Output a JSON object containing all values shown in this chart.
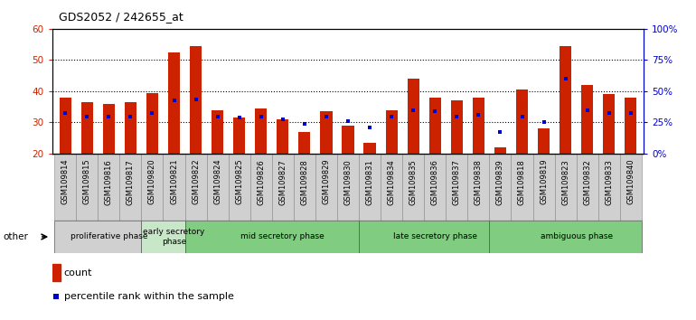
{
  "title": "GDS2052 / 242655_at",
  "samples": [
    "GSM109814",
    "GSM109815",
    "GSM109816",
    "GSM109817",
    "GSM109820",
    "GSM109821",
    "GSM109822",
    "GSM109824",
    "GSM109825",
    "GSM109826",
    "GSM109827",
    "GSM109828",
    "GSM109829",
    "GSM109830",
    "GSM109831",
    "GSM109834",
    "GSM109835",
    "GSM109836",
    "GSM109837",
    "GSM109838",
    "GSM109839",
    "GSM109818",
    "GSM109819",
    "GSM109823",
    "GSM109832",
    "GSM109833",
    "GSM109840"
  ],
  "count_values": [
    38.0,
    36.5,
    36.0,
    36.5,
    39.5,
    52.5,
    54.5,
    34.0,
    31.5,
    34.5,
    31.0,
    27.0,
    33.5,
    29.0,
    23.5,
    34.0,
    44.0,
    38.0,
    37.0,
    38.0,
    22.0,
    40.5,
    28.0,
    54.5,
    42.0,
    39.0,
    38.0
  ],
  "percentile_values": [
    33.0,
    32.0,
    32.0,
    32.0,
    33.0,
    37.0,
    37.5,
    32.0,
    31.5,
    32.0,
    31.0,
    29.5,
    32.0,
    30.5,
    28.5,
    32.0,
    34.0,
    33.5,
    32.0,
    32.5,
    27.0,
    32.0,
    30.0,
    44.0,
    34.0,
    33.0,
    33.0
  ],
  "phases": [
    {
      "label": "proliferative phase",
      "start": 0,
      "end": 4,
      "color": "#d0d0d0"
    },
    {
      "label": "early secretory\nphase",
      "start": 4,
      "end": 6,
      "color": "#c8e6c8"
    },
    {
      "label": "mid secretory phase",
      "start": 6,
      "end": 14,
      "color": "#80cc80"
    },
    {
      "label": "late secretory phase",
      "start": 14,
      "end": 20,
      "color": "#80cc80"
    },
    {
      "label": "ambiguous phase",
      "start": 20,
      "end": 27,
      "color": "#80cc80"
    }
  ],
  "bar_color": "#cc2200",
  "dot_color": "#0000cc",
  "ylim_left": [
    20,
    60
  ],
  "ylim_right": [
    0,
    100
  ],
  "yticks_left": [
    20,
    30,
    40,
    50,
    60
  ],
  "yticks_right": [
    0,
    25,
    50,
    75,
    100
  ],
  "bar_width": 0.55,
  "bg_color": "#ffffff",
  "label_bg": "#d0d0d0"
}
